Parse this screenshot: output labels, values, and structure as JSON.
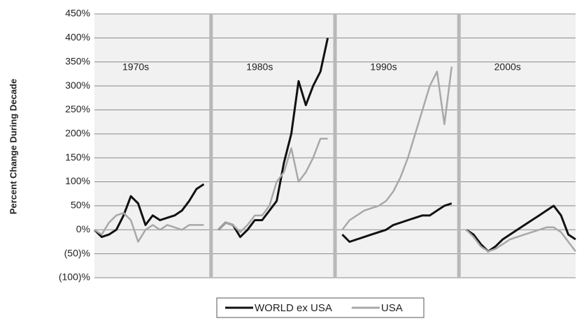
{
  "chart_data": {
    "type": "line",
    "y_axis_label": "Percent  Change During Decade",
    "ylim": [
      -100,
      450
    ],
    "yticks": [
      {
        "value": -100,
        "label": "(100)%"
      },
      {
        "value": -50,
        "label": "(50)%"
      },
      {
        "value": 0,
        "label": "0%"
      },
      {
        "value": 50,
        "label": "50%"
      },
      {
        "value": 100,
        "label": "100%"
      },
      {
        "value": 150,
        "label": "150%"
      },
      {
        "value": 200,
        "label": "200%"
      },
      {
        "value": 250,
        "label": "250%"
      },
      {
        "value": 300,
        "label": "300%"
      },
      {
        "value": 350,
        "label": "350%"
      },
      {
        "value": 400,
        "label": "400%"
      },
      {
        "value": 450,
        "label": "450%"
      }
    ],
    "grid": true,
    "annotations": [
      "1970s",
      "1980s",
      "1990s",
      "2000s"
    ],
    "categories": [
      null,
      null,
      null,
      null,
      null,
      null,
      null,
      null,
      null,
      null,
      null,
      null,
      null,
      null,
      null,
      null,
      null,
      null,
      null,
      null,
      null,
      null,
      null,
      null,
      null,
      null,
      null,
      null,
      null,
      null,
      null,
      null,
      null,
      null,
      null,
      null,
      null,
      null,
      null,
      null,
      null,
      null,
      null,
      null,
      null,
      null,
      null,
      null,
      null,
      null,
      null,
      null,
      null,
      null,
      null,
      null,
      null,
      null,
      null,
      null,
      null,
      null,
      null,
      null,
      null,
      null,
      null
    ],
    "series": [
      {
        "name": "WORLD ex USA",
        "color": "#111111",
        "values": [
          0,
          -15,
          -10,
          0,
          30,
          70,
          55,
          10,
          30,
          20,
          25,
          30,
          40,
          60,
          85,
          95,
          null,
          0,
          15,
          10,
          -15,
          0,
          20,
          20,
          40,
          60,
          140,
          200,
          310,
          260,
          300,
          330,
          400,
          null,
          -10,
          -25,
          -20,
          -15,
          -10,
          -5,
          0,
          10,
          15,
          20,
          25,
          30,
          30,
          40,
          50,
          55,
          null,
          0,
          -10,
          -30,
          -45,
          -35,
          -20,
          -10,
          0,
          10,
          20,
          30,
          40,
          50,
          30,
          -10,
          -20
        ]
      },
      {
        "name": "USA",
        "color": "#a8a8a8",
        "values": [
          0,
          -10,
          15,
          30,
          35,
          20,
          -25,
          0,
          10,
          0,
          10,
          5,
          0,
          10,
          10,
          10,
          null,
          0,
          15,
          10,
          -5,
          10,
          30,
          30,
          50,
          100,
          120,
          170,
          100,
          120,
          150,
          190,
          190,
          null,
          0,
          20,
          30,
          40,
          45,
          50,
          60,
          80,
          110,
          150,
          200,
          250,
          300,
          330,
          220,
          340,
          null,
          0,
          -15,
          -35,
          -45,
          -40,
          -30,
          -20,
          -15,
          -10,
          -5,
          0,
          5,
          5,
          -5,
          -25,
          -45
        ]
      }
    ]
  }
}
